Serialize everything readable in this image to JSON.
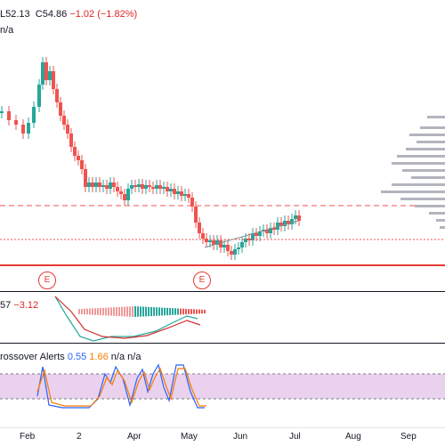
{
  "header": {
    "ohlc_prefix": "L",
    "low": "52.13",
    "close_prefix": "C",
    "close": "54.86",
    "change": "−1.02 (−1.82%)",
    "line2": "n/a"
  },
  "earnings_badges": [
    "E",
    "E"
  ],
  "macd": {
    "value1": "57",
    "value2": "−3.12"
  },
  "rsi": {
    "title": "rossover Alerts",
    "v_blue": "0.55",
    "v_orange": "1.66",
    "na1": "n/a",
    "na2": "n/a"
  },
  "xaxis": [
    "Feb",
    "2",
    "Apr",
    "May",
    "Jun",
    "Jul",
    "Aug",
    "Sep"
  ],
  "colors": {
    "up": "#26a69a",
    "down": "#ef5350",
    "dash": "#ef5350",
    "band": "#e1bee7",
    "blue": "#2962ff",
    "orange": "#f57c00"
  },
  "chart_data": {
    "type": "candlestick",
    "categories": [
      "Feb",
      "2",
      "Apr",
      "May",
      "Jun",
      "Jul",
      "Aug",
      "Sep"
    ]
  }
}
